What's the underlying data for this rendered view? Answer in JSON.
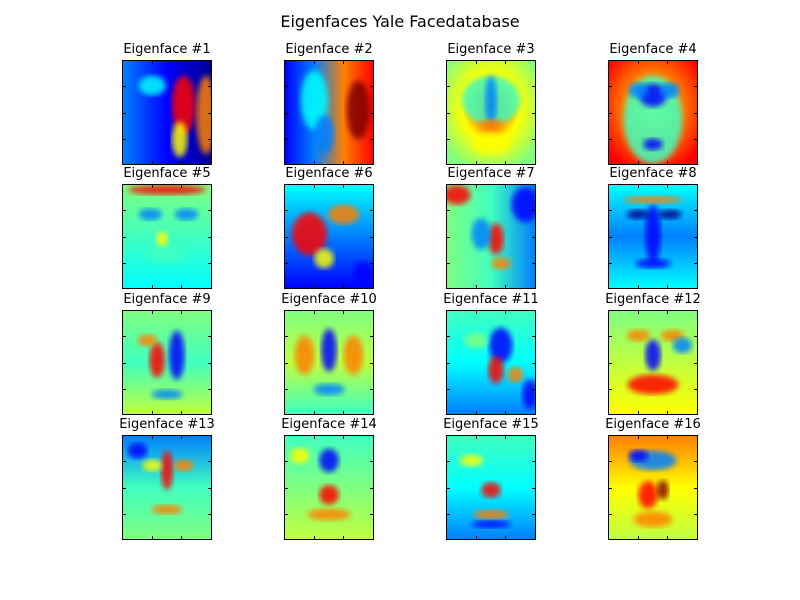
{
  "title": "Eigenfaces Yale Facedatabase",
  "panels": [
    {
      "label": "Eigenface #1",
      "variant": 1
    },
    {
      "label": "Eigenface #2",
      "variant": 2
    },
    {
      "label": "Eigenface #3",
      "variant": 3
    },
    {
      "label": "Eigenface #4",
      "variant": 4
    },
    {
      "label": "Eigenface #5",
      "variant": 5
    },
    {
      "label": "Eigenface #6",
      "variant": 6
    },
    {
      "label": "Eigenface #7",
      "variant": 7
    },
    {
      "label": "Eigenface #8",
      "variant": 8
    },
    {
      "label": "Eigenface #9",
      "variant": 9
    },
    {
      "label": "Eigenface #10",
      "variant": 10
    },
    {
      "label": "Eigenface #11",
      "variant": 11
    },
    {
      "label": "Eigenface #12",
      "variant": 12
    },
    {
      "label": "Eigenface #13",
      "variant": 13
    },
    {
      "label": "Eigenface #14",
      "variant": 14
    },
    {
      "label": "Eigenface #15",
      "variant": 15
    },
    {
      "label": "Eigenface #16",
      "variant": 16
    }
  ],
  "colormap": "jet"
}
